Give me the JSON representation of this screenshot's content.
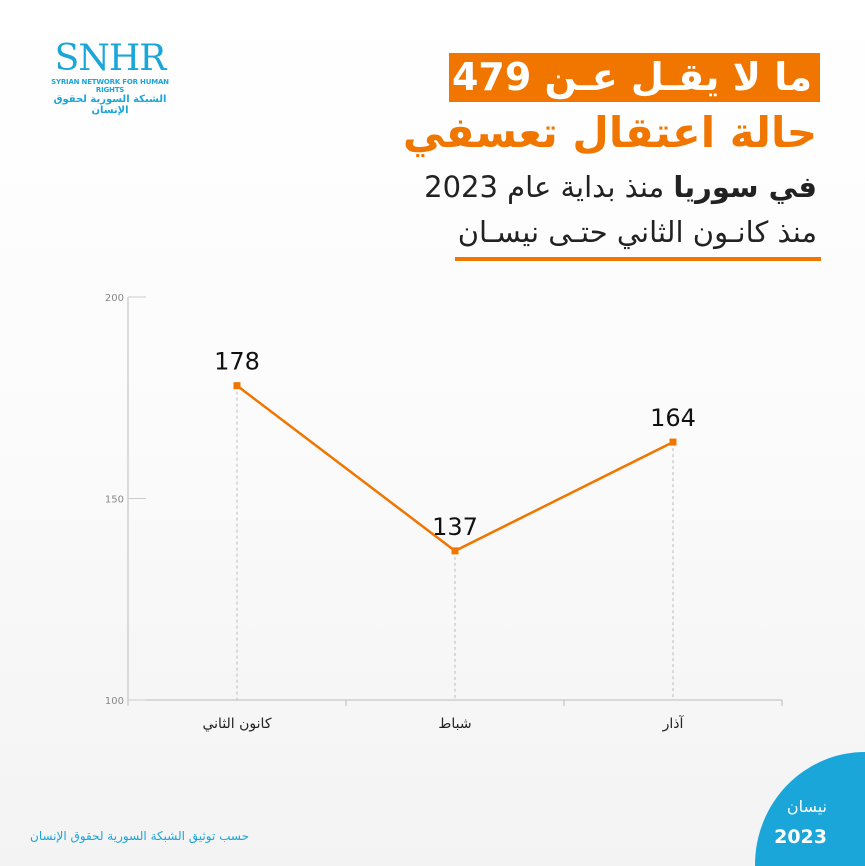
{
  "logo": {
    "abbr": "SNHR",
    "english": "SYRIAN NETWORK FOR HUMAN RIGHTS",
    "arabic": "الشبكة السورية لحقوق الإنسان"
  },
  "headline": {
    "line1": "ما لا يقـل عـن 479",
    "line2": "حالة اعتقال تعسفي",
    "line3_bold": "في سوريا",
    "line3_rest": " منذ بداية عام 2023",
    "line4": "منذ كانـون الثاني حتـى نيسـان"
  },
  "chart_data": {
    "type": "line",
    "categories": [
      "كانون الثاني",
      "شباط",
      "آذار"
    ],
    "values": [
      178,
      137,
      164
    ],
    "ylim": [
      100,
      200
    ],
    "yticks": [
      "100",
      "150",
      "200"
    ],
    "color": "#f07600",
    "grid": false
  },
  "badge": {
    "month": "نيسان",
    "year": "2023"
  },
  "footer": "حسب توثيق الشبكة السورية لحقوق الإنسان"
}
